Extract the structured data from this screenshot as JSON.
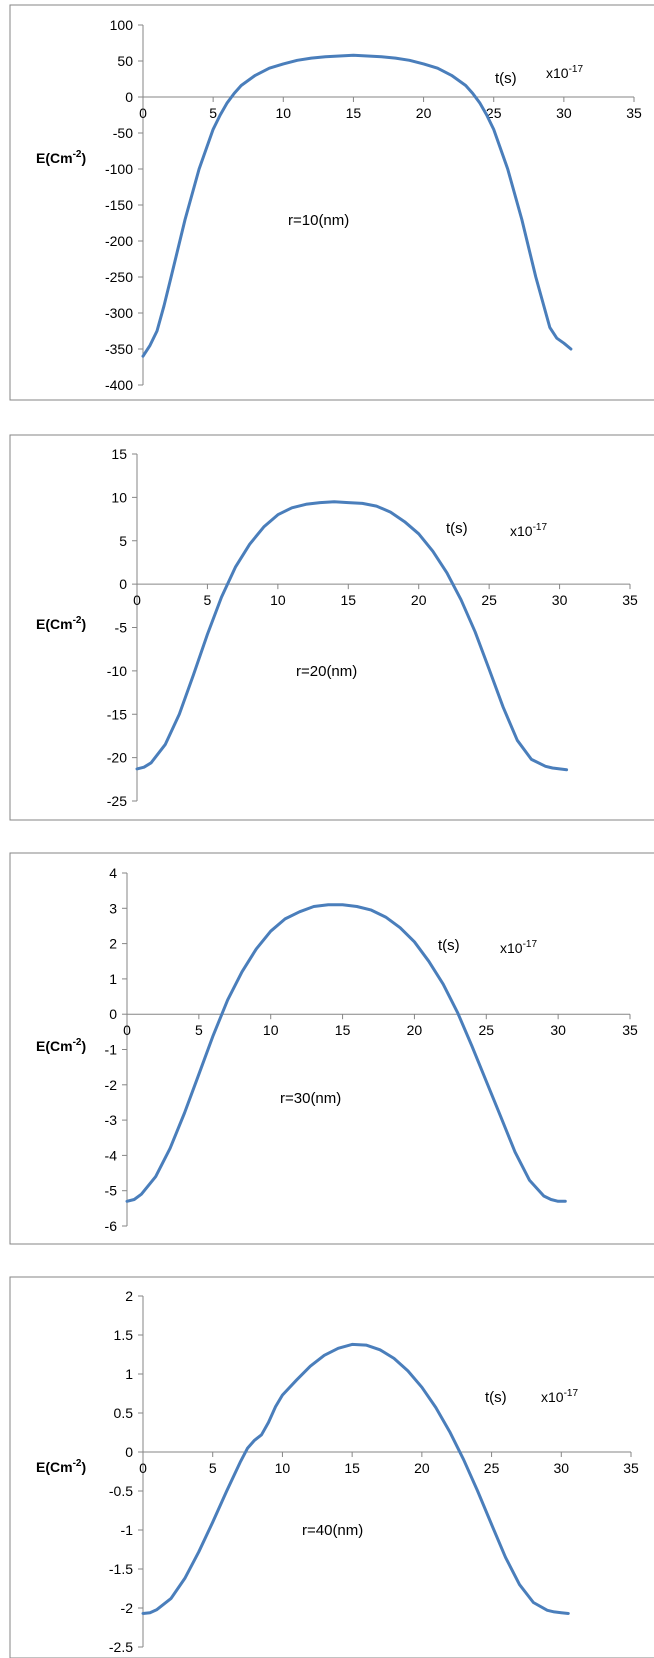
{
  "chart_data": [
    {
      "type": "line",
      "ylabel": "E(Cm",
      "ylabel_sup": "-2",
      "xlabel": "t(s)",
      "x_scale_label": "x10",
      "x_scale_sup": "-17",
      "annotation": "r=10(nm)",
      "xlim": [
        0,
        35
      ],
      "ylim": [
        -400,
        100
      ],
      "x_ticks": [
        "0",
        "5",
        "10",
        "15",
        "20",
        "25",
        "30",
        "35"
      ],
      "y_ticks": [
        "100",
        "50",
        "0",
        "-50",
        "-100",
        "-150",
        "-200",
        "-250",
        "-300",
        "-350",
        "-400"
      ],
      "series": [
        {
          "color": "#4a7ebb",
          "x": [
            0,
            0.5,
            1,
            1.5,
            2,
            3,
            4,
            5,
            5.5,
            6,
            6.5,
            7,
            8,
            9,
            10,
            11,
            12,
            13,
            14,
            15,
            16,
            17,
            18,
            19,
            20,
            21,
            22,
            23,
            23.5,
            24,
            24.5,
            25,
            26,
            27,
            28,
            29,
            29.5,
            30,
            30.5
          ],
          "y": [
            -360,
            -345,
            -325,
            -290,
            -250,
            -170,
            -100,
            -45,
            -25,
            -8,
            5,
            16,
            30,
            40,
            46,
            51,
            54,
            56,
            57,
            58,
            57,
            56,
            54,
            51,
            46,
            40,
            30,
            16,
            5,
            -8,
            -25,
            -45,
            -100,
            -170,
            -250,
            -320,
            -335,
            -342,
            -350
          ]
        }
      ]
    },
    {
      "type": "line",
      "ylabel": "E(Cm",
      "ylabel_sup": "-2",
      "xlabel": "t(s)",
      "x_scale_label": "x10",
      "x_scale_sup": "-17",
      "annotation": "r=20(nm)",
      "xlim": [
        0,
        35
      ],
      "ylim": [
        -25,
        15
      ],
      "x_ticks": [
        "0",
        "5",
        "10",
        "15",
        "20",
        "25",
        "30",
        "35"
      ],
      "y_ticks": [
        "15",
        "10",
        "5",
        "0",
        "-5",
        "-10",
        "-15",
        "-20",
        "-25"
      ],
      "series": [
        {
          "color": "#4a7ebb",
          "x": [
            0,
            0.5,
            1,
            2,
            3,
            4,
            5,
            6,
            7,
            8,
            9,
            10,
            11,
            12,
            13,
            14,
            15,
            16,
            17,
            18,
            19,
            20,
            21,
            22,
            23,
            24,
            25,
            26,
            27,
            28,
            29,
            29.5,
            30,
            30.5
          ],
          "y": [
            -21.3,
            -21.1,
            -20.6,
            -18.5,
            -15.0,
            -10.5,
            -5.8,
            -1.5,
            2.0,
            4.6,
            6.6,
            8.0,
            8.8,
            9.2,
            9.4,
            9.5,
            9.4,
            9.3,
            9.0,
            8.3,
            7.2,
            5.8,
            3.8,
            1.3,
            -1.8,
            -5.5,
            -9.8,
            -14.2,
            -18.0,
            -20.2,
            -21.0,
            -21.2,
            -21.3,
            -21.4
          ]
        }
      ]
    },
    {
      "type": "line",
      "ylabel": "E(Cm",
      "ylabel_sup": "-2",
      "xlabel": "t(s)",
      "x_scale_label": "x10",
      "x_scale_sup": "-17",
      "annotation": "r=30(nm)",
      "xlim": [
        0,
        35
      ],
      "ylim": [
        -6,
        4
      ],
      "x_ticks": [
        "0",
        "5",
        "10",
        "15",
        "20",
        "25",
        "30",
        "35"
      ],
      "y_ticks": [
        "4",
        "3",
        "2",
        "1",
        "0",
        "-1",
        "-2",
        "-3",
        "-4",
        "-5",
        "-6"
      ],
      "series": [
        {
          "color": "#4a7ebb",
          "x": [
            0,
            0.5,
            1,
            2,
            3,
            4,
            5,
            6,
            7,
            8,
            9,
            10,
            11,
            12,
            13,
            14,
            15,
            16,
            17,
            18,
            19,
            20,
            21,
            22,
            23,
            24,
            25,
            26,
            27,
            28,
            29,
            29.5,
            30,
            30.5
          ],
          "y": [
            -5.3,
            -5.25,
            -5.1,
            -4.6,
            -3.8,
            -2.8,
            -1.7,
            -0.6,
            0.4,
            1.2,
            1.85,
            2.35,
            2.7,
            2.9,
            3.05,
            3.1,
            3.1,
            3.05,
            2.95,
            2.75,
            2.45,
            2.05,
            1.5,
            0.85,
            0.05,
            -0.9,
            -1.9,
            -2.9,
            -3.9,
            -4.7,
            -5.15,
            -5.25,
            -5.3,
            -5.3
          ]
        }
      ]
    },
    {
      "type": "line",
      "ylabel": "E(Cm",
      "ylabel_sup": "-2",
      "xlabel": "t(s)",
      "x_scale_label": "x10",
      "x_scale_sup": "-17",
      "annotation": "r=40(nm)",
      "xlim": [
        0,
        35
      ],
      "ylim": [
        -2.5,
        2
      ],
      "x_ticks": [
        "0",
        "5",
        "10",
        "15",
        "20",
        "25",
        "30",
        "35"
      ],
      "y_ticks": [
        "2",
        "1.5",
        "1",
        "0.5",
        "0",
        "-0.5",
        "-1",
        "-1.5",
        "-2",
        "-2.5"
      ],
      "series": [
        {
          "color": "#4a7ebb",
          "x": [
            0,
            0.5,
            1,
            2,
            3,
            4,
            5,
            6,
            7,
            7.5,
            8,
            8.5,
            9,
            9.5,
            10,
            11,
            12,
            13,
            14,
            15,
            16,
            17,
            18,
            19,
            20,
            21,
            22,
            23,
            24,
            25,
            26,
            27,
            28,
            29,
            29.5,
            30,
            30.5
          ],
          "y": [
            -2.07,
            -2.06,
            -2.02,
            -1.88,
            -1.62,
            -1.28,
            -0.9,
            -0.5,
            -0.12,
            0.05,
            0.15,
            0.22,
            0.38,
            0.58,
            0.73,
            0.92,
            1.1,
            1.24,
            1.33,
            1.38,
            1.37,
            1.31,
            1.2,
            1.04,
            0.83,
            0.57,
            0.26,
            -0.1,
            -0.5,
            -0.93,
            -1.35,
            -1.7,
            -1.93,
            -2.03,
            -2.05,
            -2.06,
            -2.07
          ]
        }
      ]
    }
  ]
}
